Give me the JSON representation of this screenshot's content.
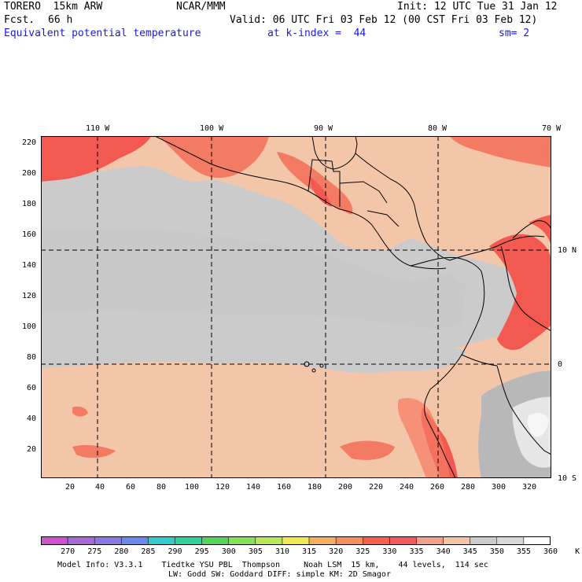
{
  "header": {
    "model": "TORERO  15km ARW",
    "org": "NCAR/MMM",
    "init": "Init: 12 UTC Tue 31 Jan 12",
    "fcst_label": "Fcst.",
    "fcst_value": "66 h",
    "valid": "Valid: 06 UTC Fri 03 Feb 12 (00 CST Fri 03 Feb 12)",
    "field": "Equivalent potential temperature",
    "level": "at k-index =  44",
    "smoothing": "sm= 2"
  },
  "map": {
    "lon_labels": [
      "110 W",
      "100 W",
      "90 W",
      "80 W",
      "70 W"
    ],
    "lat_labels": [
      "10 N",
      "0",
      "10 S"
    ],
    "x_ticks": [
      "20",
      "40",
      "60",
      "80",
      "100",
      "120",
      "140",
      "160",
      "180",
      "200",
      "220",
      "240",
      "260",
      "280",
      "300",
      "320"
    ],
    "y_ticks": [
      "220",
      "200",
      "180",
      "160",
      "140",
      "120",
      "100",
      "80",
      "60",
      "40",
      "20"
    ],
    "colors": {
      "c340": "#f4c6a9",
      "c345": "#cbcbcb",
      "c350": "#cbcbcb",
      "c355": "#e6e6e6",
      "c330": "#f25a51",
      "c335": "#f47b63",
      "c325": "#f55b4e"
    }
  },
  "legend": {
    "labels": [
      "270",
      "275",
      "280",
      "285",
      "290",
      "295",
      "300",
      "305",
      "310",
      "315",
      "320",
      "325",
      "330",
      "335",
      "340",
      "345",
      "350",
      "355",
      "360",
      "K"
    ],
    "colors": [
      "#cc55cc",
      "#a66bd4",
      "#8a78e6",
      "#6f88ee",
      "#33cccc",
      "#33d0a0",
      "#55d455",
      "#88e055",
      "#bbe855",
      "#f0e855",
      "#f4b060",
      "#f49060",
      "#f46050",
      "#f45a5a",
      "#f4a090",
      "#f4c6a9",
      "#cbcbcb",
      "#d8d8d8",
      "#ffffff"
    ]
  },
  "footer": {
    "line1": "Model Info: V3.3.1    Tiedtke YSU PBL  Thompson     Noah LSM  15 km,    44 levels,  114 sec",
    "line2": "LW: Godd SW: Goddard DIFF: simple KM: 2D Smagor"
  }
}
